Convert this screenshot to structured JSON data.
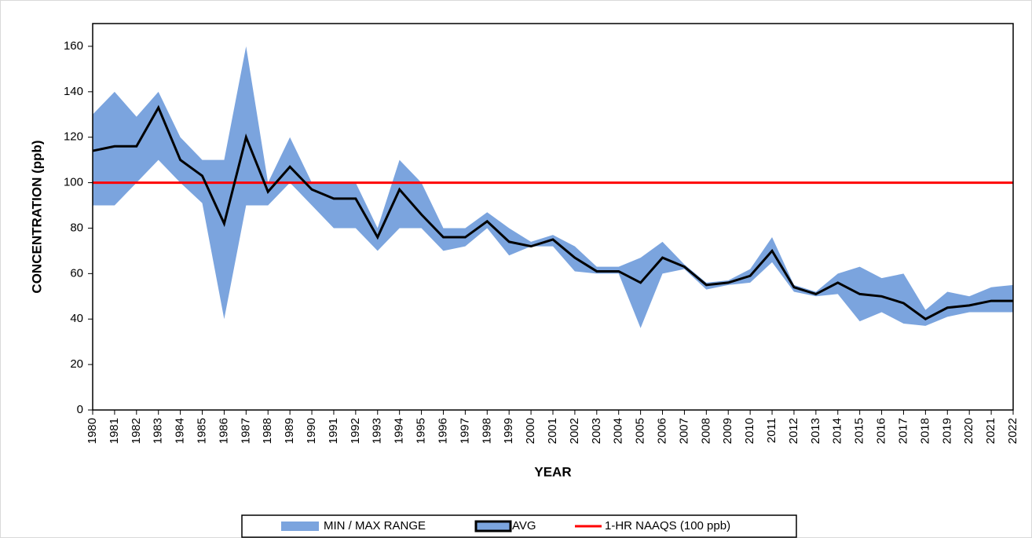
{
  "chart_data": {
    "type": "line",
    "x_label": "YEAR",
    "y_label": "CONCENTRATION (ppb)",
    "x": [
      1980,
      1981,
      1982,
      1983,
      1984,
      1985,
      1986,
      1987,
      1988,
      1989,
      1990,
      1991,
      1992,
      1993,
      1994,
      1995,
      1996,
      1997,
      1998,
      1999,
      2000,
      2001,
      2002,
      2003,
      2004,
      2005,
      2006,
      2007,
      2008,
      2009,
      2010,
      2011,
      2012,
      2013,
      2014,
      2015,
      2016,
      2017,
      2018,
      2019,
      2020,
      2021,
      2022
    ],
    "xlim": [
      1980,
      2022
    ],
    "ylim": [
      0,
      170
    ],
    "yticks": [
      0,
      20,
      40,
      60,
      80,
      100,
      120,
      140,
      160
    ],
    "series": [
      {
        "name": "MIN / MAX RANGE",
        "color": "#7ba4de",
        "high": [
          130,
          140,
          129,
          140,
          120,
          110,
          110,
          160,
          100,
          120,
          100,
          100,
          100,
          80,
          110,
          100,
          80,
          80,
          87,
          80,
          74,
          77,
          72,
          63,
          63,
          67,
          74,
          64,
          56,
          57,
          62,
          76,
          55,
          52,
          60,
          63,
          58,
          60,
          44,
          52,
          50,
          54,
          55
        ],
        "low": [
          90,
          90,
          100,
          110,
          100,
          91,
          40,
          90,
          90,
          100,
          90,
          80,
          80,
          70,
          80,
          80,
          70,
          72,
          80,
          68,
          72,
          72,
          61,
          60,
          60,
          36,
          60,
          62,
          53,
          55,
          56,
          65,
          52,
          50,
          51,
          39,
          43,
          38,
          37,
          41,
          43,
          43,
          43
        ]
      },
      {
        "name": "AVG",
        "color": "#000000",
        "values": [
          114,
          116,
          116,
          133,
          110,
          103,
          82,
          120,
          96,
          107,
          97,
          93,
          93,
          76,
          97,
          86,
          76,
          76,
          83,
          74,
          72,
          75,
          67,
          61,
          61,
          56,
          67,
          63,
          55,
          56,
          59,
          70,
          54,
          51,
          56,
          51,
          50,
          47,
          40,
          45,
          46,
          48,
          48
        ]
      },
      {
        "name": "1-HR NAAQS (100 ppb)",
        "color": "#ff0000",
        "y": 100
      }
    ]
  }
}
